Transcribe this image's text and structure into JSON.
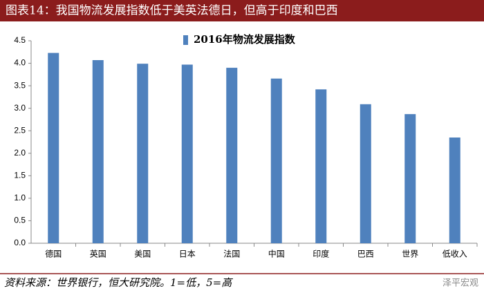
{
  "header": {
    "title": "图表14：我国物流发展指数低于美英法德日，但高于印度和巴西"
  },
  "chart_data": {
    "type": "bar",
    "legend_position": "top-center",
    "categories": [
      "德国",
      "英国",
      "美国",
      "日本",
      "法国",
      "中国",
      "印度",
      "巴西",
      "世界",
      "低收入"
    ],
    "series": [
      {
        "name": "2016年物流发展指数",
        "color": "#4f81bd",
        "values": [
          4.23,
          4.07,
          3.99,
          3.97,
          3.9,
          3.66,
          3.42,
          3.09,
          2.87,
          2.35
        ]
      }
    ],
    "ylim": [
      0,
      4.5
    ],
    "yticks": [
      {
        "value": 0,
        "label": "0.0"
      },
      0.5,
      {
        "value": 1,
        "label": "1.0"
      },
      1.5,
      {
        "value": 2,
        "label": "2.0"
      },
      2.5,
      {
        "value": 3,
        "label": "3.0"
      },
      3.5,
      {
        "value": 4,
        "label": "4.0"
      },
      4.5
    ]
  },
  "footer": {
    "source": "资料来源：世界银行，恒大研究院。1=低，5=高",
    "watermark": "泽平宏观"
  }
}
